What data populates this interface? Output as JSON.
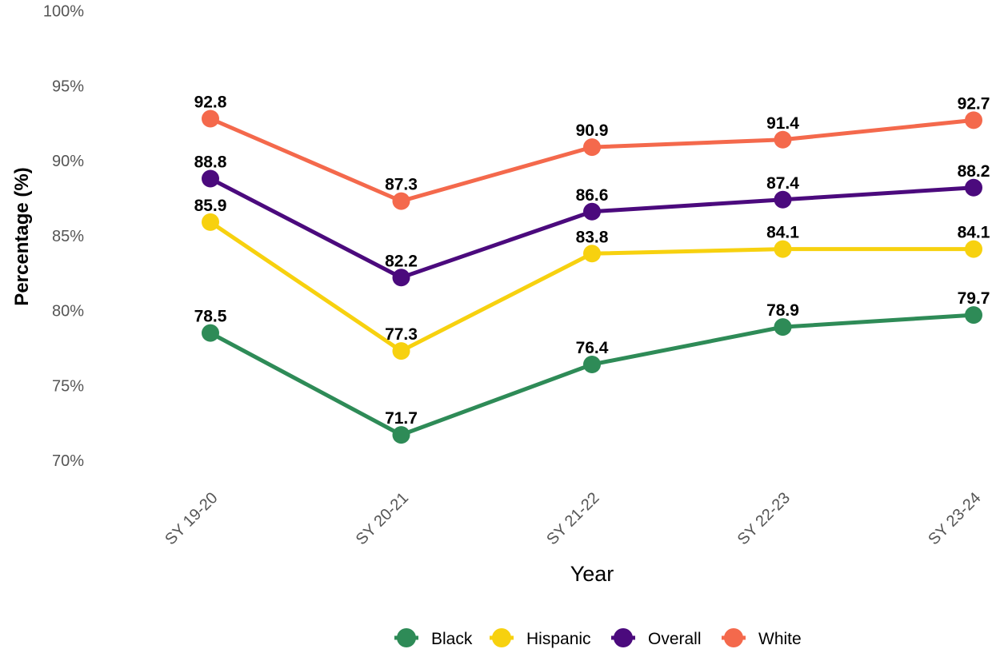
{
  "chart_data": {
    "type": "line",
    "categories": [
      "SY 19-20",
      "SY 20-21",
      "SY 21-22",
      "SY 22-23",
      "SY 23-24"
    ],
    "series": [
      {
        "name": "White",
        "color": "#f4694c",
        "values": [
          92.8,
          87.3,
          90.9,
          91.4,
          92.7
        ]
      },
      {
        "name": "Overall",
        "color": "#4b0a7d",
        "values": [
          88.8,
          82.2,
          86.6,
          87.4,
          88.2
        ]
      },
      {
        "name": "Hispanic",
        "color": "#f7d10f",
        "values": [
          85.9,
          77.3,
          83.8,
          84.1,
          84.1
        ]
      },
      {
        "name": "Black",
        "color": "#2e8b57",
        "values": [
          78.5,
          71.7,
          76.4,
          78.9,
          79.7
        ]
      }
    ],
    "legend_order": [
      "Black",
      "Hispanic",
      "Overall",
      "White"
    ],
    "xlabel": "Year",
    "ylabel": "Percentage (%)",
    "ylim": [
      70,
      100
    ],
    "yticks": [
      70,
      75,
      80,
      85,
      90,
      95,
      100
    ],
    "ytick_labels": [
      "70%",
      "75%",
      "80%",
      "85%",
      "90%",
      "95%",
      "100%"
    ],
    "grid": false,
    "legend_position": "bottom"
  }
}
